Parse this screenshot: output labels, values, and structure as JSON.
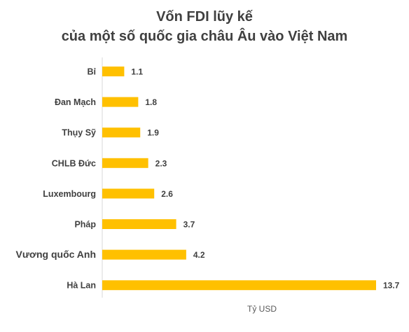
{
  "chart_data": {
    "type": "bar",
    "orientation": "horizontal",
    "title_lines": [
      "Vốn FDI lũy kế",
      "của một số quốc gia châu Âu vào Việt Nam"
    ],
    "categories": [
      "Bỉ",
      "Đan Mạch",
      "Thụy Sỹ",
      "CHLB Đức",
      "Luxembourg",
      "Pháp",
      "Vương quốc Anh",
      "Hà Lan"
    ],
    "values": [
      1.1,
      1.8,
      1.9,
      2.3,
      2.6,
      3.7,
      4.2,
      13.7
    ],
    "data_labels": [
      "1.1",
      "1.8",
      "1.9",
      "2.3",
      "2.6",
      "3.7",
      "4.2",
      "13.7"
    ],
    "xlabel": "Tỷ USD",
    "ylabel": "",
    "xlim": [
      0,
      13.7
    ],
    "grid": false,
    "legend": "none",
    "bar_color": "#FFC000",
    "text_color": "#404040"
  }
}
